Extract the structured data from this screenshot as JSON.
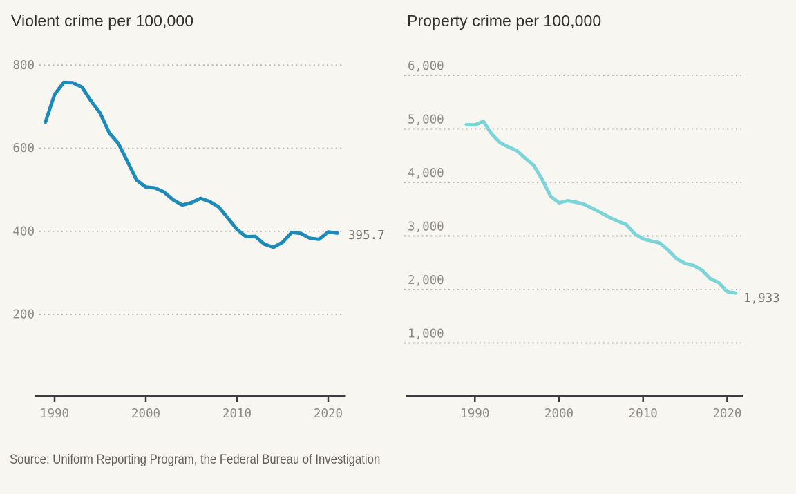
{
  "page": {
    "background": "#f8f6f1"
  },
  "source": {
    "label": "Source: Uniform Reporting Program, the Federal Bureau of Investigation"
  },
  "colors": {
    "violent_line": "#1e8ab8",
    "property_line": "#7bd5d8",
    "axis": "#3d3d3d",
    "gridline": "#b7b3ad",
    "tick_label": "#8f8b87",
    "end_label": "#7c7872",
    "title": "#33302c"
  },
  "chart_data": [
    {
      "type": "line",
      "title": "Violent crime per 100,000",
      "end_label": "395.7",
      "x": [
        1989,
        1990,
        1991,
        1992,
        1993,
        1994,
        1995,
        1996,
        1997,
        1998,
        1999,
        2000,
        2001,
        2002,
        2003,
        2004,
        2005,
        2006,
        2007,
        2008,
        2009,
        2010,
        2011,
        2012,
        2013,
        2014,
        2015,
        2016,
        2017,
        2018,
        2019,
        2020,
        2021
      ],
      "series": [
        {
          "name": "Violent crime per 100,000",
          "color": "#1e8ab8",
          "values": [
            663.1,
            729.6,
            758.2,
            757.7,
            747.1,
            713.6,
            684.5,
            636.6,
            611.0,
            567.6,
            523.0,
            506.5,
            504.5,
            494.4,
            475.8,
            463.2,
            469.0,
            479.3,
            471.8,
            458.6,
            431.9,
            404.5,
            387.1,
            387.8,
            369.1,
            361.6,
            373.7,
            397.5,
            394.9,
            383.4,
            380.8,
            398.5,
            395.7
          ]
        }
      ],
      "yticks": [
        200,
        400,
        600,
        800
      ],
      "ytick_labels": [
        "200",
        "400",
        "600",
        "800"
      ],
      "xticks": [
        1990,
        2000,
        2010,
        2020
      ],
      "xtick_labels": [
        "1990",
        "2000",
        "2010",
        "2020"
      ],
      "ylim": [
        0,
        860
      ],
      "xlabel": "",
      "ylabel": "",
      "grid": "dotted-horizontal",
      "legend_position": "none"
    },
    {
      "type": "line",
      "title": "Property crime per 100,000",
      "end_label": "1,933",
      "x": [
        1989,
        1990,
        1991,
        1992,
        1993,
        1994,
        1995,
        1996,
        1997,
        1998,
        1999,
        2000,
        2001,
        2002,
        2003,
        2004,
        2005,
        2006,
        2007,
        2008,
        2009,
        2010,
        2011,
        2012,
        2013,
        2014,
        2015,
        2016,
        2017,
        2018,
        2019,
        2020,
        2021
      ],
      "series": [
        {
          "name": "Property crime per 100,000",
          "color": "#7bd5d8",
          "values": [
            5077.9,
            5073.1,
            5140.2,
            4903.7,
            4740.0,
            4660.2,
            4590.5,
            4451.0,
            4316.3,
            4052.5,
            3743.6,
            3618.3,
            3658.1,
            3630.6,
            3591.2,
            3514.1,
            3431.5,
            3346.6,
            3276.4,
            3214.6,
            3041.3,
            2945.9,
            2905.4,
            2868.0,
            2733.6,
            2574.1,
            2487.0,
            2450.7,
            2362.2,
            2199.5,
            2130.6,
            1958.2,
            1933.0
          ]
        }
      ],
      "yticks": [
        1000,
        2000,
        3000,
        4000,
        5000,
        6000
      ],
      "ytick_labels": [
        "1,000",
        "2,000",
        "3,000",
        "4,000",
        "5,000",
        "6,000"
      ],
      "xticks": [
        1990,
        2000,
        2010,
        2020
      ],
      "xtick_labels": [
        "1990",
        "2000",
        "2010",
        "2020"
      ],
      "ylim": [
        0,
        6300
      ],
      "xlabel": "",
      "ylabel": "",
      "grid": "dotted-horizontal",
      "legend_position": "none"
    }
  ]
}
